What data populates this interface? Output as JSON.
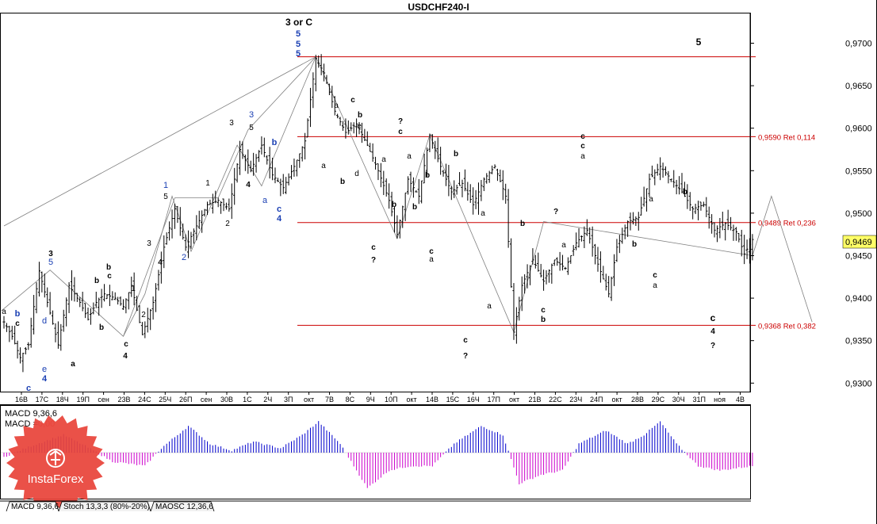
{
  "window": {
    "title": "USDCHF240-I"
  },
  "price_axis": {
    "labels": [
      "0,9700",
      "0,9650",
      "0,9600",
      "0,9550",
      "0,9500",
      "0,9450",
      "0,9400",
      "0,9350",
      "0,9300"
    ],
    "current_price": "0,9469"
  },
  "time_axis": {
    "labels": [
      "16В",
      "17С",
      "18Ч",
      "19П",
      "сен",
      "23В",
      "24С",
      "25Ч",
      "26П",
      "сен",
      "30В",
      "1С",
      "2Ч",
      "3П",
      "окт",
      "7В",
      "8С",
      "9Ч",
      "10П",
      "окт",
      "14В",
      "15С",
      "16Ч",
      "17П",
      "окт",
      "21В",
      "22С",
      "23Ч",
      "24П",
      "окт",
      "28В",
      "29С",
      "30Ч",
      "31П",
      "ноя",
      "4В"
    ]
  },
  "levels": [
    {
      "label": "",
      "price": 0.9684
    },
    {
      "label": "0,9590 Ret 0,114",
      "price": 0.959
    },
    {
      "label": "0,9489 Ret 0,236",
      "price": 0.9489
    },
    {
      "label": "0,9368 Ret 0,382",
      "price": 0.9368
    }
  ],
  "wave_labels": [
    {
      "text": "3 or C",
      "color": "black"
    },
    {
      "text": "5",
      "color": "blue"
    },
    {
      "text": "5",
      "color": "blue"
    },
    {
      "text": "5",
      "color": "blue"
    },
    {
      "text": "5",
      "color": "black"
    },
    {
      "text": "3",
      "color": "black"
    },
    {
      "text": "5",
      "color": "blue"
    },
    {
      "text": "a",
      "color": "black"
    },
    {
      "text": "b",
      "color": "blue"
    },
    {
      "text": "c",
      "color": "black"
    },
    {
      "text": "d",
      "color": "blue"
    },
    {
      "text": "b",
      "color": "black"
    },
    {
      "text": "e",
      "color": "blue"
    },
    {
      "text": "4",
      "color": "blue"
    },
    {
      "text": "c",
      "color": "blue"
    },
    {
      "text": "a",
      "color": "black"
    },
    {
      "text": "b",
      "color": "black"
    },
    {
      "text": "c",
      "color": "black"
    },
    {
      "text": "b",
      "color": "black"
    },
    {
      "text": "c",
      "color": "black"
    },
    {
      "text": "4",
      "color": "black"
    },
    {
      "text": "1",
      "color": "black"
    },
    {
      "text": "2",
      "color": "black"
    },
    {
      "text": "3",
      "color": "black"
    },
    {
      "text": "4",
      "color": "black"
    },
    {
      "text": "1",
      "color": "blue"
    },
    {
      "text": "5",
      "color": "black"
    },
    {
      "text": "2",
      "color": "blue"
    },
    {
      "text": "1",
      "color": "black"
    },
    {
      "text": "2",
      "color": "black"
    },
    {
      "text": "3",
      "color": "black"
    },
    {
      "text": "5",
      "color": "black"
    },
    {
      "text": "3",
      "color": "blue"
    },
    {
      "text": "4",
      "color": "black"
    },
    {
      "text": "b",
      "color": "blue"
    },
    {
      "text": "a",
      "color": "blue"
    },
    {
      "text": "c",
      "color": "blue"
    },
    {
      "text": "4",
      "color": "blue"
    },
    {
      "text": "a",
      "color": "black"
    },
    {
      "text": "a",
      "color": "black"
    },
    {
      "text": "c",
      "color": "black"
    },
    {
      "text": "e",
      "color": "black"
    },
    {
      "text": "b",
      "color": "black"
    },
    {
      "text": "b",
      "color": "black"
    },
    {
      "text": "d",
      "color": "black"
    },
    {
      "text": "c",
      "color": "black"
    },
    {
      "text": "?",
      "color": "black"
    },
    {
      "text": "?",
      "color": "black"
    },
    {
      "text": "c",
      "color": "black"
    },
    {
      "text": "a",
      "color": "black"
    },
    {
      "text": "b",
      "color": "black"
    },
    {
      "text": "b",
      "color": "black"
    },
    {
      "text": "a",
      "color": "black"
    },
    {
      "text": "c",
      "color": "black"
    },
    {
      "text": "a",
      "color": "black"
    },
    {
      "text": "b",
      "color": "black"
    },
    {
      "text": "c",
      "color": "black"
    },
    {
      "text": "?",
      "color": "black"
    },
    {
      "text": "a",
      "color": "black"
    },
    {
      "text": "a",
      "color": "black"
    },
    {
      "text": "b",
      "color": "black"
    },
    {
      "text": "b",
      "color": "black"
    },
    {
      "text": "c",
      "color": "black"
    },
    {
      "text": "b",
      "color": "black"
    },
    {
      "text": "a",
      "color": "black"
    },
    {
      "text": "?",
      "color": "black"
    },
    {
      "text": "c",
      "color": "black"
    },
    {
      "text": "c",
      "color": "black"
    },
    {
      "text": "a",
      "color": "black"
    },
    {
      "text": "b",
      "color": "black"
    },
    {
      "text": "a",
      "color": "black"
    },
    {
      "text": "c",
      "color": "black"
    },
    {
      "text": "a",
      "color": "black"
    },
    {
      "text": "b",
      "color": "black"
    },
    {
      "text": "c",
      "color": "black"
    },
    {
      "text": "4",
      "color": "black"
    },
    {
      "text": "?",
      "color": "black"
    }
  ],
  "indicator": {
    "macd_label": "MACD 9,36,6",
    "macd_value_prefix": "MACD =",
    "macd_value": "0,00"
  },
  "tabs": [
    "MACD 9,36,6",
    "Stoch 13,3,3 (80%-20%)",
    "MAOSC 12,36,6"
  ],
  "watermark": {
    "text": "InstaForex"
  },
  "colors": {
    "candles": "#000000",
    "levels": "#cc0000",
    "waves": "#808080",
    "macd_positive": "#0000cc",
    "macd_negative": "#cc00cc",
    "wave_blue": "#1a3fb3",
    "watermark": "#e8443a"
  },
  "chart_data": {
    "type": "candlestick",
    "title": "USDCHF240-I",
    "ylim": [
      0.929,
      0.9735
    ],
    "y_ticks": [
      0.97,
      0.965,
      0.96,
      0.955,
      0.95,
      0.945,
      0.94,
      0.935,
      0.93
    ],
    "x_labels": [
      "16В",
      "17С",
      "18Ч",
      "19П",
      "сен",
      "23В",
      "24С",
      "25Ч",
      "26П",
      "сен",
      "30В",
      "1С",
      "2Ч",
      "3П",
      "окт",
      "7В",
      "8С",
      "9Ч",
      "10П",
      "окт",
      "14В",
      "15С",
      "16Ч",
      "17П",
      "окт",
      "21В",
      "22С",
      "23Ч",
      "24П",
      "окт",
      "28В",
      "29С",
      "30Ч",
      "31П",
      "ноя",
      "4В"
    ],
    "current_price": 0.9469,
    "anchors": [
      [
        0,
        0.9372
      ],
      [
        3,
        0.9355
      ],
      [
        6,
        0.933
      ],
      [
        9,
        0.9345
      ],
      [
        11,
        0.939
      ],
      [
        13,
        0.9432
      ],
      [
        16,
        0.9395
      ],
      [
        20,
        0.9345
      ],
      [
        24,
        0.9415
      ],
      [
        28,
        0.9395
      ],
      [
        31,
        0.9375
      ],
      [
        34,
        0.9395
      ],
      [
        37,
        0.9405
      ],
      [
        41,
        0.94
      ],
      [
        44,
        0.939
      ],
      [
        47,
        0.9415
      ],
      [
        51,
        0.9357
      ],
      [
        55,
        0.9395
      ],
      [
        59,
        0.946
      ],
      [
        63,
        0.9505
      ],
      [
        67,
        0.946
      ],
      [
        71,
        0.9485
      ],
      [
        75,
        0.951
      ],
      [
        79,
        0.9515
      ],
      [
        83,
        0.9505
      ],
      [
        87,
        0.9575
      ],
      [
        91,
        0.955
      ],
      [
        95,
        0.958
      ],
      [
        99,
        0.9545
      ],
      [
        103,
        0.953
      ],
      [
        107,
        0.9555
      ],
      [
        111,
        0.9585
      ],
      [
        115,
        0.9682
      ],
      [
        118,
        0.9665
      ],
      [
        122,
        0.962
      ],
      [
        126,
        0.9595
      ],
      [
        130,
        0.9605
      ],
      [
        134,
        0.958
      ],
      [
        138,
        0.955
      ],
      [
        142,
        0.9515
      ],
      [
        145,
        0.9475
      ],
      [
        149,
        0.954
      ],
      [
        153,
        0.952
      ],
      [
        157,
        0.9592
      ],
      [
        161,
        0.9555
      ],
      [
        165,
        0.9525
      ],
      [
        169,
        0.9535
      ],
      [
        173,
        0.951
      ],
      [
        177,
        0.954
      ],
      [
        181,
        0.9555
      ],
      [
        185,
        0.952
      ],
      [
        188,
        0.936
      ],
      [
        191,
        0.9415
      ],
      [
        195,
        0.9445
      ],
      [
        199,
        0.942
      ],
      [
        203,
        0.9445
      ],
      [
        207,
        0.9435
      ],
      [
        211,
        0.9465
      ],
      [
        215,
        0.948
      ],
      [
        219,
        0.944
      ],
      [
        223,
        0.9405
      ],
      [
        226,
        0.946
      ],
      [
        230,
        0.949
      ],
      [
        234,
        0.9495
      ],
      [
        238,
        0.954
      ],
      [
        242,
        0.9555
      ],
      [
        246,
        0.954
      ],
      [
        250,
        0.9525
      ],
      [
        254,
        0.9505
      ],
      [
        258,
        0.951
      ],
      [
        262,
        0.948
      ],
      [
        266,
        0.9488
      ],
      [
        270,
        0.9478
      ],
      [
        273,
        0.9452
      ],
      [
        276,
        0.9469
      ]
    ],
    "levels": [
      {
        "price": 0.9684,
        "label": ""
      },
      {
        "price": 0.959,
        "label": "0,9590 Ret 0,114"
      },
      {
        "price": 0.9489,
        "label": "0,9489 Ret 0,236"
      },
      {
        "price": 0.9368,
        "label": "0,9368 Ret 0,382"
      }
    ],
    "macd": {
      "label": "MACD 9,36,6",
      "value": 0.0,
      "anchors": [
        [
          0,
          -0.0002
        ],
        [
          10,
          0.0003
        ],
        [
          22,
          0.0008
        ],
        [
          30,
          0.0003
        ],
        [
          40,
          -0.0004
        ],
        [
          52,
          -0.0006
        ],
        [
          58,
          0.0002
        ],
        [
          68,
          0.0012
        ],
        [
          76,
          0.0004
        ],
        [
          84,
          0.0001
        ],
        [
          92,
          0.0005
        ],
        [
          102,
          0.0002
        ],
        [
          110,
          0.0008
        ],
        [
          116,
          0.0014
        ],
        [
          124,
          0.0004
        ],
        [
          134,
          -0.0016
        ],
        [
          142,
          -0.0008
        ],
        [
          150,
          -0.0006
        ],
        [
          158,
          -0.0006
        ],
        [
          166,
          0.0004
        ],
        [
          176,
          0.0012
        ],
        [
          184,
          0.0008
        ],
        [
          190,
          -0.0014
        ],
        [
          198,
          -0.001
        ],
        [
          206,
          -0.0008
        ],
        [
          212,
          0.0004
        ],
        [
          222,
          0.001
        ],
        [
          230,
          0.0004
        ],
        [
          236,
          0.0008
        ],
        [
          242,
          0.0014
        ],
        [
          248,
          0.0004
        ],
        [
          256,
          -0.0006
        ],
        [
          264,
          -0.0008
        ],
        [
          276,
          -0.0006
        ]
      ]
    }
  }
}
